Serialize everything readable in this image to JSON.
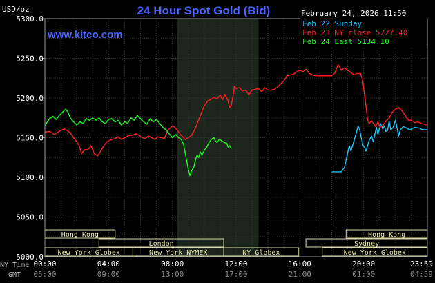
{
  "header": {
    "unit": "USD/oz",
    "title": "24 Hour Spot Gold (Bid)",
    "datetime": "February 24, 2026 11:50",
    "site": "www.kitco.com",
    "title_color": "#4a64ff",
    "site_color": "#4a64ff"
  },
  "legend": [
    {
      "label": "Feb 22 Sunday",
      "color": "#1ec8ff"
    },
    {
      "label": "Feb 23 NY close 5227.40",
      "color": "#ff2020"
    },
    {
      "label": "Feb 24 Last 5134.10",
      "color": "#20ff20"
    }
  ],
  "x_axis": {
    "ny_time_label": "NY Time",
    "gmt_label": "GMT",
    "ny_ticks": [
      "00:00",
      "04:00",
      "08:00",
      "12:00",
      "16:00",
      "20:00",
      "23:59"
    ],
    "gmt_ticks": [
      "05:00",
      "09:00",
      "13:00",
      "17:00",
      "21:00",
      "01:00",
      "04:59"
    ]
  },
  "sessions": [
    {
      "label": "Hong Kong",
      "start": 0.0,
      "end": 7.35
    },
    {
      "label": "London",
      "start": 5.65,
      "end": 18.7
    },
    {
      "label": "New York Globex",
      "start": 0.0,
      "end": 9.2
    },
    {
      "label": "New York NYMEX",
      "start": 9.2,
      "end": 18.7
    },
    {
      "label": "NY Globex",
      "start": 18.7,
      "end": 26.55
    },
    {
      "label": "Hong Kong",
      "start": 31.5,
      "end": 40.0
    },
    {
      "label": "Sydney",
      "start": 27.3,
      "end": 40.0
    },
    {
      "label": "New York Globex",
      "start": 29.0,
      "end": 40.0
    }
  ],
  "chart_data": {
    "type": "line",
    "title": "24 Hour Spot Gold (Bid)",
    "ylabel": "USD/oz",
    "xlabel": "",
    "x_units": "hours (NY time) since 00:00",
    "xlim": [
      0,
      24
    ],
    "ylim": [
      5000,
      5300
    ],
    "y_ticks": [
      "5000.0",
      "5050.0",
      "5100.0",
      "5150.0",
      "5200.0",
      "5250.0",
      "5300.0"
    ],
    "grid": true,
    "legend_position": "top-right",
    "nymex_shade": [
      8.3,
      13.4
    ],
    "series": [
      {
        "name": "Feb 22 Sunday",
        "color": "#1ec8ff",
        "points": [
          [
            18.0,
            5107
          ],
          [
            18.6,
            5107
          ],
          [
            18.8,
            5113
          ],
          [
            18.9,
            5122
          ],
          [
            19.0,
            5131
          ],
          [
            19.1,
            5140
          ],
          [
            19.2,
            5133
          ],
          [
            19.3,
            5140
          ],
          [
            19.45,
            5150
          ],
          [
            19.55,
            5157
          ],
          [
            19.65,
            5165
          ],
          [
            19.75,
            5160
          ],
          [
            19.85,
            5150
          ],
          [
            19.95,
            5141
          ],
          [
            20.05,
            5138
          ],
          [
            20.15,
            5133
          ],
          [
            20.25,
            5140
          ],
          [
            20.35,
            5147
          ],
          [
            20.5,
            5152
          ],
          [
            20.6,
            5145
          ],
          [
            20.8,
            5163
          ],
          [
            20.9,
            5154
          ],
          [
            21.05,
            5168
          ],
          [
            21.2,
            5161
          ],
          [
            21.3,
            5165
          ],
          [
            21.4,
            5158
          ],
          [
            21.5,
            5159
          ],
          [
            21.6,
            5171
          ],
          [
            21.7,
            5160
          ],
          [
            21.85,
            5163
          ],
          [
            22.0,
            5172
          ],
          [
            22.1,
            5162
          ],
          [
            22.2,
            5152
          ],
          [
            22.3,
            5160
          ],
          [
            22.5,
            5164
          ],
          [
            22.7,
            5162
          ],
          [
            22.9,
            5160
          ],
          [
            23.2,
            5163
          ],
          [
            23.5,
            5162
          ],
          [
            23.7,
            5160
          ],
          [
            23.99,
            5160
          ]
        ]
      },
      {
        "name": "Feb 23 NY close 5227.40",
        "color": "#ff2020",
        "points": [
          [
            0.0,
            5157
          ],
          [
            0.3,
            5158
          ],
          [
            0.6,
            5154
          ],
          [
            0.9,
            5158
          ],
          [
            1.2,
            5161
          ],
          [
            1.4,
            5159
          ],
          [
            1.6,
            5156
          ],
          [
            1.8,
            5150
          ],
          [
            2.0,
            5145
          ],
          [
            2.15,
            5140
          ],
          [
            2.3,
            5130
          ],
          [
            2.5,
            5135
          ],
          [
            2.7,
            5135
          ],
          [
            2.9,
            5140
          ],
          [
            3.1,
            5130
          ],
          [
            3.3,
            5127
          ],
          [
            3.5,
            5133
          ],
          [
            3.7,
            5140
          ],
          [
            3.9,
            5145
          ],
          [
            4.1,
            5147
          ],
          [
            4.4,
            5149
          ],
          [
            4.6,
            5151
          ],
          [
            4.8,
            5148
          ],
          [
            5.0,
            5150
          ],
          [
            5.3,
            5153
          ],
          [
            5.5,
            5153
          ],
          [
            5.7,
            5155
          ],
          [
            5.9,
            5153
          ],
          [
            6.1,
            5150
          ],
          [
            6.3,
            5149
          ],
          [
            6.5,
            5152
          ],
          [
            6.7,
            5150
          ],
          [
            6.9,
            5148
          ],
          [
            7.1,
            5151
          ],
          [
            7.3,
            5150
          ],
          [
            7.5,
            5149
          ],
          [
            7.7,
            5159
          ],
          [
            7.9,
            5163
          ],
          [
            8.05,
            5165
          ],
          [
            8.2,
            5162
          ],
          [
            8.4,
            5157
          ],
          [
            8.6,
            5152
          ],
          [
            8.8,
            5148
          ],
          [
            9.0,
            5150
          ],
          [
            9.2,
            5153
          ],
          [
            9.4,
            5160
          ],
          [
            9.6,
            5170
          ],
          [
            9.8,
            5180
          ],
          [
            10.0,
            5190
          ],
          [
            10.2,
            5196
          ],
          [
            10.4,
            5198
          ],
          [
            10.6,
            5201
          ],
          [
            10.8,
            5199
          ],
          [
            11.0,
            5204
          ],
          [
            11.15,
            5198
          ],
          [
            11.3,
            5205
          ],
          [
            11.5,
            5196
          ],
          [
            11.6,
            5188
          ],
          [
            11.7,
            5191
          ],
          [
            11.8,
            5202
          ],
          [
            11.9,
            5215
          ],
          [
            12.0,
            5212
          ],
          [
            12.2,
            5213
          ],
          [
            12.4,
            5209
          ],
          [
            12.6,
            5210
          ],
          [
            12.8,
            5204
          ],
          [
            13.0,
            5210
          ],
          [
            13.2,
            5211
          ],
          [
            13.4,
            5212
          ],
          [
            13.6,
            5208
          ],
          [
            13.8,
            5213
          ],
          [
            14.0,
            5210
          ],
          [
            14.2,
            5210
          ],
          [
            14.4,
            5211
          ],
          [
            14.6,
            5214
          ],
          [
            14.8,
            5218
          ],
          [
            15.0,
            5222
          ],
          [
            15.2,
            5228
          ],
          [
            15.4,
            5229
          ],
          [
            15.6,
            5230
          ],
          [
            15.8,
            5233
          ],
          [
            16.0,
            5235
          ],
          [
            16.2,
            5233
          ],
          [
            16.4,
            5236
          ],
          [
            16.6,
            5231
          ],
          [
            16.8,
            5229
          ],
          [
            17.0,
            5228
          ],
          [
            17.3,
            5228
          ],
          [
            17.6,
            5228
          ],
          [
            17.9,
            5228
          ],
          [
            18.0,
            5228
          ],
          [
            18.2,
            5232
          ],
          [
            18.4,
            5242
          ],
          [
            18.6,
            5235
          ],
          [
            18.8,
            5238
          ],
          [
            19.0,
            5235
          ],
          [
            19.2,
            5232
          ],
          [
            19.4,
            5229
          ],
          [
            19.6,
            5231
          ],
          [
            19.8,
            5231
          ],
          [
            19.95,
            5221
          ],
          [
            20.05,
            5205
          ],
          [
            20.15,
            5190
          ],
          [
            20.25,
            5172
          ],
          [
            20.35,
            5168
          ],
          [
            20.5,
            5171
          ],
          [
            20.6,
            5168
          ],
          [
            20.75,
            5164
          ],
          [
            20.9,
            5170
          ],
          [
            21.0,
            5163
          ],
          [
            21.2,
            5165
          ],
          [
            21.4,
            5171
          ],
          [
            21.6,
            5175
          ],
          [
            21.8,
            5182
          ],
          [
            22.0,
            5186
          ],
          [
            22.2,
            5188
          ],
          [
            22.4,
            5184
          ],
          [
            22.6,
            5178
          ],
          [
            22.8,
            5172
          ],
          [
            23.0,
            5172
          ],
          [
            23.2,
            5169
          ],
          [
            23.4,
            5170
          ],
          [
            23.6,
            5168
          ],
          [
            23.8,
            5167
          ],
          [
            23.99,
            5166
          ]
        ]
      },
      {
        "name": "Feb 24 Last 5134.10",
        "color": "#20ff20",
        "points": [
          [
            0.0,
            5165
          ],
          [
            0.15,
            5170
          ],
          [
            0.3,
            5174
          ],
          [
            0.5,
            5177
          ],
          [
            0.7,
            5173
          ],
          [
            0.9,
            5178
          ],
          [
            1.1,
            5182
          ],
          [
            1.3,
            5186
          ],
          [
            1.45,
            5182
          ],
          [
            1.6,
            5175
          ],
          [
            1.8,
            5170
          ],
          [
            2.0,
            5166
          ],
          [
            2.2,
            5170
          ],
          [
            2.4,
            5168
          ],
          [
            2.6,
            5174
          ],
          [
            2.8,
            5172
          ],
          [
            3.0,
            5175
          ],
          [
            3.2,
            5172
          ],
          [
            3.4,
            5175
          ],
          [
            3.6,
            5170
          ],
          [
            3.8,
            5168
          ],
          [
            4.0,
            5173
          ],
          [
            4.2,
            5174
          ],
          [
            4.4,
            5170
          ],
          [
            4.6,
            5172
          ],
          [
            4.8,
            5166
          ],
          [
            5.0,
            5170
          ],
          [
            5.2,
            5168
          ],
          [
            5.4,
            5175
          ],
          [
            5.6,
            5172
          ],
          [
            5.8,
            5178
          ],
          [
            6.0,
            5174
          ],
          [
            6.2,
            5170
          ],
          [
            6.4,
            5167
          ],
          [
            6.6,
            5174
          ],
          [
            6.8,
            5170
          ],
          [
            7.0,
            5173
          ],
          [
            7.2,
            5168
          ],
          [
            7.4,
            5163
          ],
          [
            7.6,
            5160
          ],
          [
            7.8,
            5155
          ],
          [
            8.0,
            5150
          ],
          [
            8.2,
            5154
          ],
          [
            8.4,
            5150
          ],
          [
            8.55,
            5148
          ],
          [
            8.7,
            5142
          ],
          [
            8.85,
            5126
          ],
          [
            9.0,
            5110
          ],
          [
            9.1,
            5102
          ],
          [
            9.2,
            5108
          ],
          [
            9.35,
            5113
          ],
          [
            9.45,
            5122
          ],
          [
            9.55,
            5128
          ],
          [
            9.65,
            5125
          ],
          [
            9.75,
            5132
          ],
          [
            9.85,
            5128
          ],
          [
            10.0,
            5134
          ],
          [
            10.15,
            5138
          ],
          [
            10.3,
            5144
          ],
          [
            10.45,
            5148
          ],
          [
            10.6,
            5150
          ],
          [
            10.7,
            5146
          ],
          [
            10.8,
            5144
          ],
          [
            10.95,
            5148
          ],
          [
            11.1,
            5146
          ],
          [
            11.25,
            5144
          ],
          [
            11.4,
            5143
          ],
          [
            11.5,
            5138
          ],
          [
            11.6,
            5140
          ],
          [
            11.7,
            5136
          ]
        ]
      }
    ]
  }
}
